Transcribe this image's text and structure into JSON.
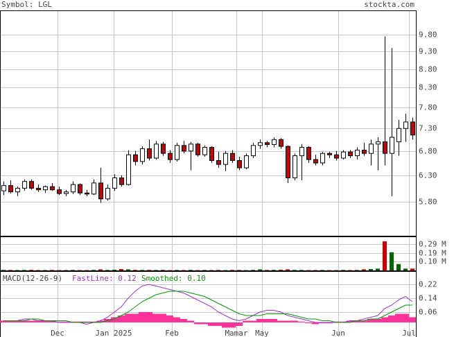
{
  "header": {
    "symbol": "Symbol: LGL",
    "site": "stockta.com"
  },
  "chart_data": [
    {
      "type": "candlestick",
      "log": true,
      "grid": true,
      "ylim": [
        5.21,
        10.58
      ],
      "yticks": [
        {
          "value": 9.8,
          "label": "9.80"
        },
        {
          "value": 9.3,
          "label": "9.30"
        },
        {
          "value": 8.8,
          "label": "8.80"
        },
        {
          "value": 8.3,
          "label": "8.30"
        },
        {
          "value": 7.8,
          "label": "7.80"
        },
        {
          "value": 7.3,
          "label": "7.30"
        },
        {
          "value": 6.8,
          "label": "6.80"
        },
        {
          "value": 6.3,
          "label": "6.30"
        },
        {
          "value": 5.8,
          "label": "5.80"
        }
      ],
      "xlim": [
        -0.5,
        59.5
      ],
      "xticks": [
        {
          "value": 7.8,
          "label": "Dec"
        },
        {
          "value": 15.9,
          "label": "Jan 2025"
        },
        {
          "value": 24.3,
          "label": "Feb"
        },
        {
          "value": 33.6,
          "label": "Mamar"
        },
        {
          "value": 37.3,
          "label": "May"
        },
        {
          "value": 48.3,
          "label": "Jun"
        },
        {
          "value": 58.5,
          "label": "Jul"
        }
      ],
      "up_color": "#ffffff",
      "down_color": "#cc0000",
      "open": [
        6.0,
        6.1,
        5.98,
        6.05,
        6.18,
        6.05,
        6.02,
        6.08,
        6.02,
        5.95,
        5.98,
        6.12,
        5.96,
        5.94,
        6.15,
        5.85,
        6.05,
        6.25,
        6.12,
        6.72,
        6.58,
        6.85,
        6.65,
        6.95,
        6.75,
        6.62,
        6.92,
        6.8,
        6.95,
        6.72,
        6.88,
        6.6,
        6.52,
        6.75,
        6.6,
        6.45,
        6.7,
        6.92,
        6.98,
        6.94,
        7.05,
        6.9,
        6.25,
        6.7,
        6.88,
        6.62,
        6.55,
        6.75,
        6.72,
        6.65,
        6.78,
        6.7,
        6.82,
        6.75,
        6.95,
        7.0,
        6.75,
        7.0,
        7.3,
        7.45
      ],
      "high": [
        6.18,
        6.2,
        6.08,
        6.22,
        6.22,
        6.12,
        6.1,
        6.15,
        6.08,
        6.02,
        6.18,
        6.14,
        6.02,
        6.22,
        6.45,
        6.12,
        6.32,
        6.3,
        6.82,
        6.8,
        6.9,
        7.05,
        7.02,
        7.0,
        6.82,
        6.98,
        7.02,
        7.0,
        6.98,
        6.92,
        6.9,
        6.78,
        6.8,
        6.82,
        6.68,
        6.75,
        6.98,
        7.05,
        7.02,
        7.1,
        7.08,
        6.92,
        6.75,
        6.95,
        6.9,
        6.72,
        6.78,
        6.78,
        6.8,
        6.82,
        6.82,
        6.88,
        6.98,
        7.05,
        7.1,
        9.75,
        9.4,
        7.5,
        7.65,
        7.55
      ],
      "low": [
        5.92,
        5.95,
        5.9,
        6.0,
        6.02,
        5.98,
        5.96,
        6.0,
        5.92,
        5.9,
        5.94,
        5.92,
        5.9,
        5.92,
        5.78,
        5.82,
        6.0,
        6.08,
        6.1,
        6.5,
        6.52,
        6.6,
        6.62,
        6.7,
        6.55,
        6.58,
        6.75,
        6.4,
        6.68,
        6.68,
        6.55,
        6.45,
        6.38,
        6.55,
        6.4,
        6.42,
        6.65,
        6.85,
        6.88,
        6.88,
        6.85,
        6.15,
        6.2,
        6.2,
        6.55,
        6.5,
        6.5,
        6.65,
        6.6,
        6.62,
        6.65,
        6.62,
        6.7,
        6.5,
        6.4,
        6.5,
        5.9,
        6.7,
        7.0,
        7.05
      ],
      "close": [
        6.1,
        5.98,
        6.05,
        6.18,
        6.05,
        6.02,
        6.08,
        6.02,
        5.95,
        5.98,
        6.12,
        5.96,
        5.94,
        6.15,
        5.85,
        6.05,
        6.25,
        6.12,
        6.72,
        6.58,
        6.85,
        6.65,
        6.95,
        6.75,
        6.62,
        6.92,
        6.8,
        6.95,
        6.72,
        6.88,
        6.6,
        6.52,
        6.75,
        6.6,
        6.45,
        6.7,
        6.92,
        6.98,
        6.94,
        7.05,
        6.9,
        6.25,
        6.7,
        6.88,
        6.62,
        6.55,
        6.75,
        6.72,
        6.65,
        6.78,
        6.7,
        6.82,
        6.75,
        6.95,
        7.0,
        6.75,
        7.1,
        7.3,
        7.45,
        7.15
      ]
    },
    {
      "type": "bar",
      "grid": true,
      "ylim": [
        0,
        0.374
      ],
      "yticks": [
        {
          "value": 0.29,
          "label": "0.29 M"
        },
        {
          "value": 0.19,
          "label": "0.19 M"
        },
        {
          "value": 0.1,
          "label": "0.10 M"
        }
      ],
      "up_color": "#006600",
      "down_color": "#cc0000",
      "values": [
        0.006,
        0.005,
        0.004,
        0.005,
        0.006,
        0.004,
        0.004,
        0.005,
        0.004,
        0.004,
        0.006,
        0.004,
        0.004,
        0.006,
        0.012,
        0.005,
        0.008,
        0.015,
        0.012,
        0.006,
        0.005,
        0.006,
        0.005,
        0.006,
        0.004,
        0.005,
        0.004,
        0.006,
        0.004,
        0.005,
        0.004,
        0.005,
        0.004,
        0.006,
        0.005,
        0.004,
        0.006,
        0.012,
        0.005,
        0.006,
        0.008,
        0.012,
        0.006,
        0.005,
        0.004,
        0.004,
        0.005,
        0.004,
        0.004,
        0.006,
        0.004,
        0.005,
        0.012,
        0.015,
        0.02,
        0.32,
        0.2,
        0.07,
        0.02,
        0.02
      ]
    },
    {
      "type": "line",
      "title": "MACD(12-26-9)",
      "grid": true,
      "ylim": [
        -0.084,
        0.296
      ],
      "yticks": [
        0.22,
        0.14,
        0.06
      ],
      "series": [
        {
          "name": "FastLine: 0.12",
          "color": "#9933cc",
          "values": [
            0.01,
            0.01,
            0.01,
            0.02,
            0.02,
            0.01,
            0.01,
            0.01,
            0.0,
            0.0,
            0.0,
            0.0,
            -0.01,
            0.0,
            0.01,
            0.03,
            0.06,
            0.09,
            0.14,
            0.18,
            0.21,
            0.22,
            0.21,
            0.2,
            0.19,
            0.18,
            0.17,
            0.15,
            0.13,
            0.11,
            0.09,
            0.06,
            0.04,
            0.02,
            0.01,
            0.02,
            0.04,
            0.06,
            0.07,
            0.07,
            0.06,
            0.04,
            0.03,
            0.02,
            0.01,
            0.0,
            0.0,
            0.0,
            0.0,
            0.0,
            0.01,
            0.01,
            0.02,
            0.03,
            0.04,
            0.08,
            0.1,
            0.13,
            0.15,
            0.12
          ]
        },
        {
          "name": "Smoothed: 0.10",
          "color": "#009900",
          "values": [
            0.01,
            0.01,
            0.01,
            0.01,
            0.02,
            0.02,
            0.01,
            0.01,
            0.01,
            0.01,
            0.0,
            0.0,
            0.0,
            0.0,
            0.0,
            0.01,
            0.02,
            0.04,
            0.06,
            0.09,
            0.12,
            0.14,
            0.16,
            0.17,
            0.18,
            0.18,
            0.18,
            0.17,
            0.16,
            0.15,
            0.13,
            0.11,
            0.09,
            0.07,
            0.05,
            0.04,
            0.04,
            0.04,
            0.05,
            0.05,
            0.05,
            0.05,
            0.04,
            0.03,
            0.02,
            0.02,
            0.01,
            0.01,
            0.0,
            0.0,
            0.0,
            0.01,
            0.01,
            0.02,
            0.02,
            0.04,
            0.06,
            0.08,
            0.1,
            0.1
          ]
        }
      ],
      "histogram": {
        "color": "#ff3399",
        "values": [
          0.01,
          0.01,
          0.01,
          0.01,
          0.01,
          0.01,
          0.01,
          0.01,
          0.005,
          0.005,
          0.005,
          0.005,
          0.005,
          0.005,
          0.01,
          0.02,
          0.03,
          0.04,
          0.05,
          0.05,
          0.06,
          0.06,
          0.05,
          0.05,
          0.04,
          0.03,
          0.02,
          0.01,
          -0.01,
          -0.01,
          -0.02,
          -0.02,
          -0.03,
          -0.03,
          -0.02,
          0.01,
          0.01,
          0.02,
          0.02,
          0.02,
          0.01,
          0.01,
          0.01,
          0.005,
          -0.005,
          -0.01,
          -0.005,
          -0.005,
          0.005,
          0.005,
          0.01,
          0.01,
          0.01,
          0.02,
          0.02,
          0.03,
          0.04,
          0.05,
          0.05,
          0.03
        ]
      }
    }
  ]
}
